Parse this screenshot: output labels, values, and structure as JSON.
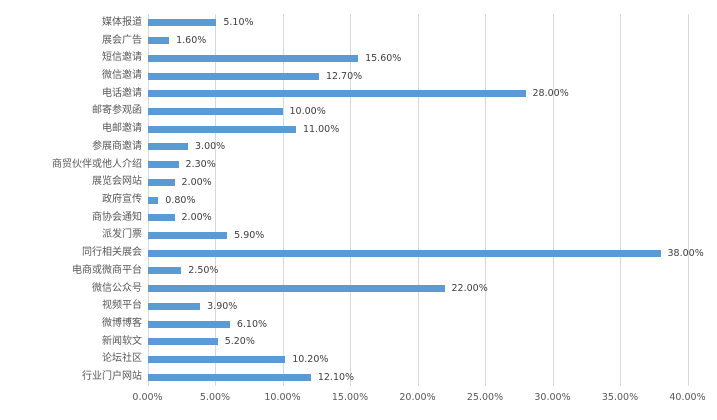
{
  "chart": {
    "background_color": "#ffffff"
  },
  "chart_data": {
    "type": "bar",
    "orientation": "horizontal",
    "title": "",
    "xlabel": "",
    "ylabel": "",
    "legend": "none",
    "grid": "vertical",
    "xlim": [
      0,
      40
    ],
    "categories": [
      "媒体报道",
      "展会广告",
      "短信邀请",
      "微信邀请",
      "电话邀请",
      "邮寄参观函",
      "电邮邀请",
      "参展商邀请",
      "商贸伙伴或他人介绍",
      "展览会网站",
      "政府宣传",
      "商协会通知",
      "派发门票",
      "同行相关展会",
      "电商或微商平台",
      "微信公众号",
      "视频平台",
      "微博博客",
      "新闻软文",
      "论坛社区",
      "行业门户网站"
    ],
    "values": [
      5.1,
      1.6,
      15.6,
      12.7,
      28.0,
      10.0,
      11.0,
      3.0,
      2.3,
      2.0,
      0.8,
      2.0,
      5.9,
      38.0,
      2.5,
      22.0,
      3.9,
      6.1,
      5.2,
      10.2,
      12.1
    ],
    "value_labels": [
      "5.10%",
      "1.60%",
      "15.60%",
      "12.70%",
      "28.00%",
      "10.00%",
      "11.00%",
      "3.00%",
      "2.30%",
      "2.00%",
      "0.80%",
      "2.00%",
      "5.90%",
      "38.00%",
      "2.50%",
      "22.00%",
      "3.90%",
      "6.10%",
      "5.20%",
      "10.20%",
      "12.10%"
    ],
    "x_tick_values": [
      0,
      5,
      10,
      15,
      20,
      25,
      30,
      35,
      40
    ],
    "x_tick_labels": [
      "0.00%",
      "5.00%",
      "10.00%",
      "15.00%",
      "20.00%",
      "25.00%",
      "30.00%",
      "35.00%",
      "40.00%"
    ],
    "bar_color": "#5b9bd5",
    "gridline_color": "#d9d9d9",
    "category_label_color": "#595959",
    "value_label_color": "#404040",
    "axis_label_color": "#595959"
  }
}
